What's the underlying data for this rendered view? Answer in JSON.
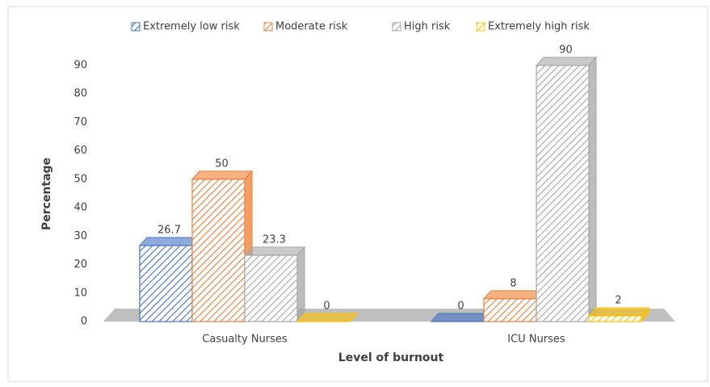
{
  "chart_data": {
    "type": "bar3d",
    "x_label": "Level of burnout",
    "y_label": "Percentage",
    "categories": [
      "Casualty Nurses",
      "ICU Nurses"
    ],
    "series": [
      {
        "name": "Extremely low risk",
        "color": "#4472c4",
        "values": [
          26.7,
          0
        ]
      },
      {
        "name": "Moderate risk",
        "color": "#ed7d31",
        "values": [
          50,
          8
        ]
      },
      {
        "name": "High risk",
        "color": "#a5a5a5",
        "values": [
          23.3,
          90
        ]
      },
      {
        "name": "Extremely high risk",
        "color": "#ffc000",
        "values": [
          0,
          2
        ]
      }
    ],
    "ylim": [
      0,
      90
    ],
    "yticks": [
      0,
      10,
      20,
      30,
      40,
      50,
      60,
      70,
      80,
      90
    ],
    "grid": false,
    "legend": "top"
  }
}
